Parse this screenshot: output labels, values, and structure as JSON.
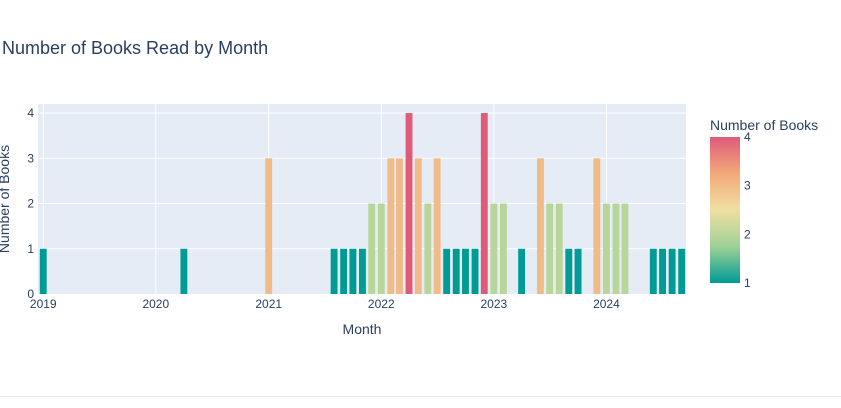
{
  "chart_data": {
    "type": "bar",
    "title": "Number of Books Read by Month",
    "xlabel": "Month",
    "ylabel": "Number of Books",
    "x_ticks": [
      "2019",
      "2020",
      "2021",
      "2022",
      "2023",
      "2024"
    ],
    "y_ticks": [
      "0",
      "1",
      "2",
      "3",
      "4"
    ],
    "ylim": [
      0,
      4.2
    ],
    "xlim": [
      "2018-12-15",
      "2024-09-15"
    ],
    "grid": true,
    "colorbar": {
      "title": "Number of Books",
      "ticks": [
        "1",
        "2",
        "3",
        "4"
      ],
      "range": [
        1,
        4
      ],
      "colorscale": [
        "#009B95",
        "#9ED196",
        "#F0DFA3",
        "#F2A97A",
        "#DE5B7A"
      ]
    },
    "x": [
      "2019-01",
      "2020-04",
      "2021-01",
      "2021-08",
      "2021-09",
      "2021-10",
      "2021-11",
      "2021-12",
      "2022-01",
      "2022-02",
      "2022-03",
      "2022-04",
      "2022-05",
      "2022-06",
      "2022-07",
      "2022-08",
      "2022-09",
      "2022-10",
      "2022-11",
      "2022-12",
      "2023-01",
      "2023-02",
      "2023-04",
      "2023-06",
      "2023-07",
      "2023-08",
      "2023-09",
      "2023-10",
      "2023-12",
      "2024-01",
      "2024-02",
      "2024-03",
      "2024-06",
      "2024-07",
      "2024-08",
      "2024-09"
    ],
    "values": [
      1,
      1,
      3,
      1,
      1,
      1,
      1,
      2,
      2,
      3,
      3,
      4,
      3,
      2,
      3,
      1,
      1,
      1,
      1,
      4,
      2,
      2,
      1,
      3,
      2,
      2,
      1,
      1,
      3,
      2,
      2,
      2,
      1,
      1,
      1,
      1
    ]
  }
}
